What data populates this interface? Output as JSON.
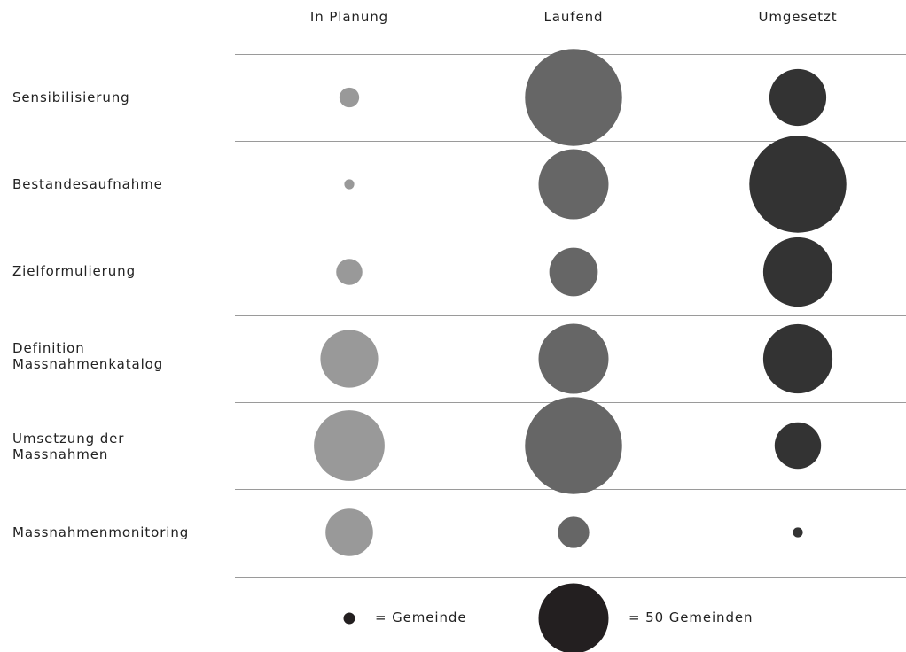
{
  "chart_data": {
    "type": "bubble-matrix",
    "columns": [
      "In Planung",
      "Laufend",
      "Umgesetzt"
    ],
    "rows": [
      {
        "label": "Sensibilisierung",
        "values": [
          4,
          96,
          33
        ]
      },
      {
        "label": "Bestandesaufnahme",
        "values": [
          1,
          50,
          96
        ]
      },
      {
        "label": "Zielformulierung",
        "values": [
          7,
          24,
          49
        ]
      },
      {
        "label": "Definition Massnahmenkatalog",
        "values": [
          34,
          50,
          49
        ]
      },
      {
        "label": "Umsetzung der Massnahmen",
        "values": [
          51,
          96,
          22
        ]
      },
      {
        "label": "Massnahmenmonitoring",
        "values": [
          23,
          10,
          1
        ]
      }
    ],
    "column_colors": [
      "#999999",
      "#666666",
      "#333333"
    ],
    "legend": {
      "small": {
        "value": 1,
        "label": "= Gemeinde",
        "color": "#231f20"
      },
      "large": {
        "value": 50,
        "label": "= 50 Gemeinden",
        "color": "#231f20"
      }
    }
  }
}
